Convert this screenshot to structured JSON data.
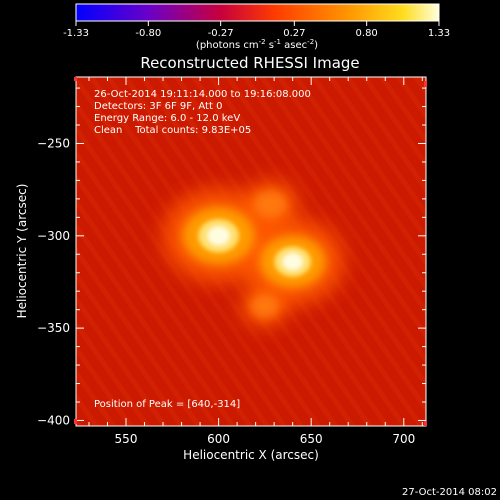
{
  "colorbar": {
    "ticks": [
      "-1.33",
      "-0.80",
      "-0.27",
      "0.27",
      "0.80",
      "1.33"
    ],
    "units_prefix": "(photons cm",
    "units_sup1": "-2",
    "units_mid": " s",
    "units_sup2": "-1",
    "units_mid2": " asec",
    "units_sup3": "-2",
    "units_suffix": ")"
  },
  "chart_data": {
    "type": "heatmap",
    "title": "Reconstructed RHESSI Image",
    "xlabel": "Heliocentric X (arcsec)",
    "ylabel": "Heliocentric Y (arcsec)",
    "xlim": [
      523,
      712
    ],
    "ylim": [
      -403,
      -214
    ],
    "x_ticks": [
      550,
      600,
      650,
      700
    ],
    "y_ticks": [
      -250,
      -300,
      -350,
      -400
    ],
    "colorbar_range": [
      -1.33,
      1.33
    ],
    "colormap": [
      "#0000ff",
      "#6a00c8",
      "#c8003c",
      "#ff3c00",
      "#ff9600",
      "#ffdc1e",
      "#ffffdc"
    ],
    "info_lines": [
      "26-Oct-2014 19:11:14.000 to 19:16:08.000",
      "Detectors: 3F 6F 9F, Att 0",
      "Energy Range: 6.0 - 12.0 keV",
      "Clean    Total counts: 9.83E+05"
    ],
    "peak_label": "Position of Peak = [640,-314]",
    "peak_position": [
      640,
      -314
    ],
    "sources": [
      {
        "x": 600,
        "y": -300,
        "intensity": 1.33
      },
      {
        "x": 640,
        "y": -314,
        "intensity": 1.2
      },
      {
        "x": 628,
        "y": -283,
        "intensity": 0.55
      },
      {
        "x": 625,
        "y": -338,
        "intensity": 0.45
      }
    ]
  },
  "timestamp": "27-Oct-2014 08:02",
  "colors": {
    "background": "#000000",
    "text": "#ffffff",
    "map_base": "#cc1a00",
    "edge_marks": "#ff3030"
  }
}
